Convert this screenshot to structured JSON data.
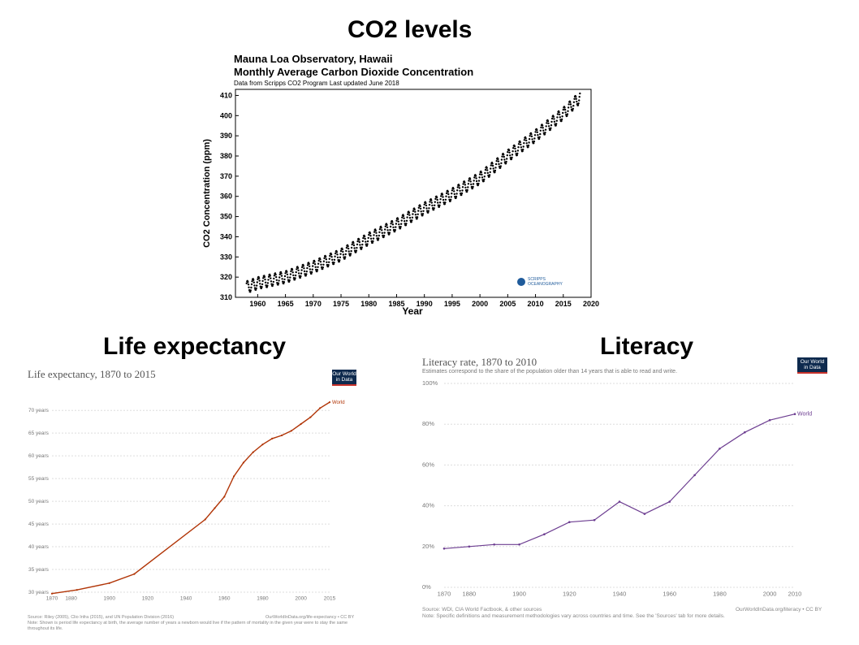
{
  "titles": {
    "co2": "CO2 levels",
    "life": "Life expectancy",
    "literacy": "Literacy"
  },
  "chart_data": [
    {
      "type": "scatter",
      "title": "Mauna Loa Observatory, Hawaii",
      "subtitle": "Monthly Average Carbon Dioxide Concentration",
      "source_note": "Data from Scripps CO2 Program    Last updated June 2018",
      "xlabel": "Year",
      "ylabel": "CO2 Concentration (ppm)",
      "xlim": [
        1956,
        2020
      ],
      "ylim": [
        310,
        413
      ],
      "x_ticks": [
        "1960",
        "1965",
        "1970",
        "1975",
        "1980",
        "1985",
        "1990",
        "1995",
        "2000",
        "2005",
        "2010",
        "2015",
        "2020"
      ],
      "y_ticks": [
        "310",
        "320",
        "330",
        "340",
        "350",
        "360",
        "370",
        "380",
        "390",
        "400",
        "410"
      ],
      "series": [
        {
          "x": [
            1958,
            1960,
            1965,
            1970,
            1975,
            1980,
            1985,
            1990,
            1995,
            2000,
            2005,
            2010,
            2015,
            2018
          ],
          "y": [
            315,
            317,
            320,
            325,
            331,
            339,
            346,
            354,
            361,
            369,
            380,
            390,
            401,
            409
          ],
          "seasonal_amplitude_ppm": 3
        }
      ],
      "logo_text": [
        "SCRIPPS",
        "OCEANOGRAPHY"
      ],
      "grid": false
    },
    {
      "type": "line",
      "title": "Life expectancy, 1870 to 2015",
      "x": [
        1870,
        1883,
        1900,
        1913,
        1950,
        1955,
        1960,
        1965,
        1970,
        1975,
        1980,
        1985,
        1990,
        1995,
        2000,
        2005,
        2010,
        2015
      ],
      "x_ticks": [
        "1870",
        "1880",
        "1900",
        "1920",
        "1940",
        "1960",
        "1980",
        "2000",
        "2015"
      ],
      "y_ticks": [
        "30 years",
        "35 years",
        "40 years",
        "45 years",
        "50 years",
        "55 years",
        "60 years",
        "65 years",
        "70 years"
      ],
      "xlim": [
        1870,
        2015
      ],
      "ylim": [
        30,
        72
      ],
      "series": [
        {
          "name": "World",
          "color": "#b13507",
          "values": [
            29.7,
            30.5,
            32,
            34,
            46,
            48.5,
            51,
            55.5,
            58.5,
            60.8,
            62.5,
            63.8,
            64.5,
            65.5,
            67,
            68.5,
            70.5,
            71.8
          ]
        }
      ],
      "logo": [
        "Our World",
        "in Data"
      ],
      "source": "Source: Riley (2005), Clio Infra (2015), and UN Population Division (2016)",
      "credit": "OurWorldInData.org/life-expectancy • CC BY",
      "note": "Note: Shown is period life expectancy at birth, the average number of years a newborn would live if the pattern of mortality in the given year were to stay the same throughout its life."
    },
    {
      "type": "line",
      "title": "Literacy rate, 1870 to 2010",
      "subtitle": "Estimates correspond to the share of the population older than 14 years that is able to read and write.",
      "x": [
        1870,
        1880,
        1890,
        1900,
        1910,
        1920,
        1930,
        1940,
        1950,
        1960,
        1970,
        1980,
        1990,
        2000,
        2010
      ],
      "x_ticks": [
        "1870",
        "1880",
        "1900",
        "1920",
        "1940",
        "1960",
        "1980",
        "2000",
        "2010"
      ],
      "y_ticks": [
        "0%",
        "20%",
        "40%",
        "60%",
        "80%",
        "100%"
      ],
      "xlim": [
        1870,
        2010
      ],
      "ylim": [
        0,
        100
      ],
      "series": [
        {
          "name": "World",
          "color": "#6d3e91",
          "values": [
            19,
            20,
            21,
            21,
            26,
            32,
            33,
            42,
            36,
            42,
            55,
            68,
            76,
            82,
            85
          ]
        }
      ],
      "logo": [
        "Our World",
        "in Data"
      ],
      "source": "Source: WDI, CIA World Factbook, & other sources",
      "credit": "OurWorldInData.org/literacy • CC BY",
      "note": "Note: Specific definitions and measurement methodologies vary across countries and time. See the 'Sources' tab for more details."
    }
  ]
}
